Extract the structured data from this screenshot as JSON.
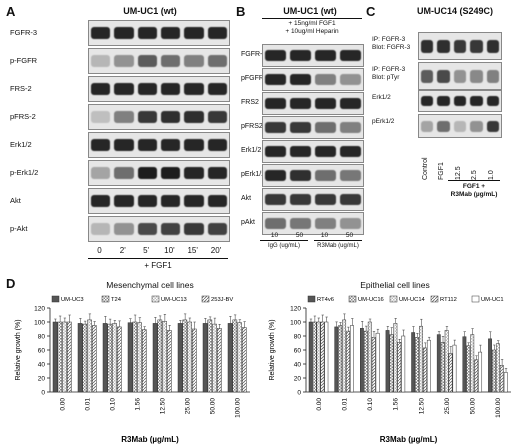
{
  "panel_a": {
    "letter": "A",
    "title": "UM-UC1 (wt)",
    "rows": [
      "FGFR-3",
      "p-FGFR",
      "FRS-2",
      "pFRS-2",
      "Erk1/2",
      "p-Erk1/2",
      "Akt",
      "p-Akt"
    ],
    "timepoints": [
      "0",
      "2'",
      "5'",
      "10'",
      "15'",
      "20'"
    ],
    "treatment": "+ FGF1"
  },
  "panel_b": {
    "letter": "B",
    "title": "UM-UC1 (wt)",
    "header_line1": "+ 15ng/ml FGF1",
    "header_line2": "+ 10ug/ml Heparin",
    "rows": [
      "FGFR-3",
      "pFGFR",
      "FRS2",
      "pFRS2",
      "Erk1/2",
      "pErk1/2",
      "Akt",
      "pAkt"
    ],
    "doses": [
      "10",
      "50",
      "10",
      "50"
    ],
    "group1": "IgG (ug/mL)",
    "group2": "R3Mab (ug/mL)"
  },
  "panel_c": {
    "letter": "C",
    "title": "UM-UC14 (S249C)",
    "rows": [
      "IP: FGFR-3\nBlot: FGFR-3",
      "IP: FGFR-3\nBlot: pTyr",
      "Erk1/2",
      "pErk1/2"
    ],
    "lanes": [
      "Control",
      "FGF1",
      "12.5",
      "2.5",
      "1.0"
    ],
    "treatment_line1": "FGF1 +",
    "treatment_line2": "R3Mab (µg/mL)"
  },
  "panel_d": {
    "letter": "D",
    "xlabel": "R3Mab (µg/mL)",
    "ylabel": "Relative growth (%)"
  },
  "chart_data": [
    {
      "type": "bar",
      "title": "Mesenchymal cell lines",
      "xlabel": "R3Mab (µg/mL)",
      "ylabel": "Relative growth (%)",
      "ylim": [
        0,
        120
      ],
      "yticks": [
        0,
        20,
        40,
        60,
        80,
        100,
        120
      ],
      "categories": [
        "0.00",
        "0.01",
        "0.10",
        "1.56",
        "12.50",
        "25.00",
        "50.00",
        "100.00"
      ],
      "series": [
        {
          "name": "UM-UC3",
          "values": [
            100,
            98,
            98,
            99,
            98,
            98,
            98,
            98
          ]
        },
        {
          "name": "T24",
          "values": [
            100,
            97,
            97,
            100,
            103,
            103,
            103,
            103
          ]
        },
        {
          "name": "UM-UC13",
          "values": [
            100,
            103,
            98,
            99,
            101,
            100,
            97,
            99
          ]
        },
        {
          "name": "253J-BV",
          "values": [
            100,
            95,
            93,
            89,
            88,
            90,
            91,
            92
          ]
        }
      ]
    },
    {
      "type": "bar",
      "title": "Epithelial cell lines",
      "xlabel": "R3Mab (µg/mL)",
      "ylabel": "Relative growth (%)",
      "ylim": [
        0,
        120
      ],
      "yticks": [
        0,
        20,
        40,
        60,
        80,
        100,
        120
      ],
      "categories": [
        "0.00",
        "0.01",
        "0.10",
        "1.56",
        "12.50",
        "25.00",
        "50.00",
        "100.00"
      ],
      "series": [
        {
          "name": "RT4v6",
          "values": [
            100,
            93,
            91,
            88,
            85,
            82,
            79,
            76
          ]
        },
        {
          "name": "UM-UC16",
          "values": [
            100,
            95,
            87,
            82,
            78,
            71,
            66,
            60
          ]
        },
        {
          "name": "UM-UC14",
          "values": [
            100,
            103,
            100,
            98,
            94,
            88,
            82,
            69
          ]
        },
        {
          "name": "RT112",
          "values": [
            100,
            87,
            78,
            71,
            63,
            55,
            46,
            38
          ]
        },
        {
          "name": "UM-UC1",
          "values": [
            100,
            95,
            84,
            80,
            74,
            67,
            57,
            28
          ]
        }
      ]
    }
  ]
}
